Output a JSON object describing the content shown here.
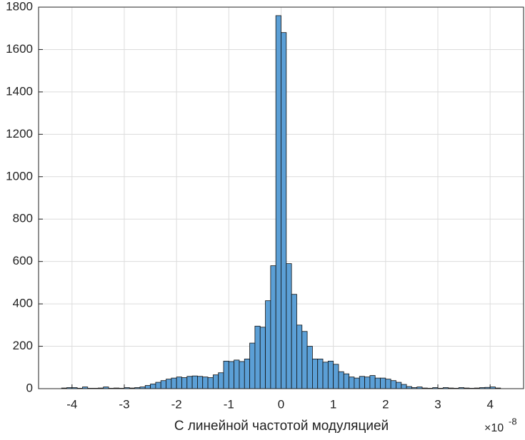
{
  "chart_data": {
    "type": "histogram",
    "xlabel": "С линейной частотой модуляцией",
    "x_multiplier": "×10",
    "x_multiplier_exponent": "-8",
    "bins": [
      -4.2,
      -4.1,
      -4.0,
      -3.9,
      -3.8,
      -3.7,
      -3.6,
      -3.5,
      -3.4,
      -3.3,
      -3.2,
      -3.1,
      -3.0,
      -2.9,
      -2.8,
      -2.7,
      -2.6,
      -2.5,
      -2.4,
      -2.3,
      -2.2,
      -2.1,
      -2.0,
      -1.9,
      -1.8,
      -1.7,
      -1.6,
      -1.5,
      -1.4,
      -1.3,
      -1.2,
      -1.1,
      -1.0,
      -0.9,
      -0.8,
      -0.7,
      -0.6,
      -0.5,
      -0.4,
      -0.3,
      -0.2,
      -0.1,
      0,
      0.1,
      0.2,
      0.3,
      0.4,
      0.5,
      0.6,
      0.7,
      0.8,
      0.9,
      1.0,
      1.1,
      1.2,
      1.3,
      1.4,
      1.5,
      1.6,
      1.7,
      1.8,
      1.9,
      2.0,
      2.1,
      2.2,
      2.3,
      2.4,
      2.5,
      2.6,
      2.7,
      2.8,
      2.9,
      3.0,
      3.1,
      3.2,
      3.3,
      3.4,
      3.5,
      3.6,
      3.7,
      3.8,
      3.9,
      4.0,
      4.1,
      4.2
    ],
    "counts": [
      3,
      5,
      5,
      2,
      8,
      2,
      2,
      3,
      8,
      2,
      3,
      2,
      5,
      3,
      5,
      8,
      15,
      22,
      30,
      38,
      45,
      50,
      55,
      52,
      58,
      60,
      58,
      55,
      52,
      65,
      75,
      130,
      128,
      135,
      128,
      140,
      215,
      295,
      290,
      415,
      580,
      1760,
      1680,
      590,
      445,
      300,
      270,
      200,
      140,
      140,
      125,
      130,
      115,
      80,
      70,
      55,
      50,
      58,
      55,
      62,
      50,
      50,
      45,
      38,
      30,
      20,
      10,
      5,
      8,
      3,
      2,
      5,
      2,
      5,
      3,
      2,
      5,
      3,
      2,
      3,
      5,
      6,
      8,
      3
    ],
    "color": "#5b9fd6",
    "xlim": [
      -4.64,
      4.64
    ],
    "ylim": [
      0,
      1800
    ],
    "xticks": [
      -4,
      -3,
      -2,
      -1,
      0,
      1,
      2,
      3,
      4
    ],
    "yticks": [
      0,
      200,
      400,
      600,
      800,
      1000,
      1200,
      1400,
      1600,
      1800
    ],
    "grid": true
  }
}
